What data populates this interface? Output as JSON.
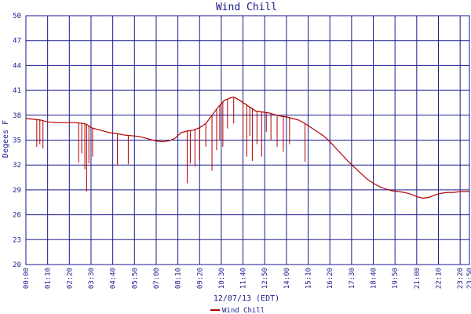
{
  "chart_data": {
    "type": "line",
    "title": "Wind Chill",
    "xlabel": "12/07/13 (EDT)",
    "ylabel": "Degees F",
    "ylim": [
      20,
      50
    ],
    "yticks": [
      "20",
      "23",
      "26",
      "29",
      "32",
      "35",
      "38",
      "41",
      "44",
      "47",
      "50"
    ],
    "xticks": [
      "00:00",
      "01:10",
      "02:20",
      "03:30",
      "04:40",
      "05:50",
      "07:00",
      "08:10",
      "09:20",
      "10:30",
      "11:40",
      "12:50",
      "14:00",
      "15:10",
      "16:20",
      "17:30",
      "18:40",
      "19:50",
      "21:00",
      "22:10",
      "23:20",
      "23:50"
    ],
    "grid": true,
    "legend_position": "bottom-left",
    "series": [
      {
        "name": "Wind Chill",
        "color": "#b00000",
        "x_minutes": [
          0,
          30,
          50,
          60,
          70,
          100,
          130,
          160,
          190,
          200,
          210,
          230,
          250,
          270,
          290,
          320,
          350,
          370,
          390,
          410,
          420,
          440,
          460,
          480,
          500,
          520,
          540,
          560,
          580,
          600,
          620,
          640,
          660,
          670,
          680,
          690,
          700,
          710,
          720,
          730,
          740,
          760,
          780,
          800,
          820,
          840,
          860,
          880,
          900,
          920,
          940,
          960,
          980,
          1000,
          1020,
          1040,
          1060,
          1080,
          1100,
          1120,
          1140,
          1160,
          1180,
          1200,
          1220,
          1240,
          1260,
          1280,
          1300,
          1320,
          1340,
          1360,
          1380,
          1400,
          1420,
          1430
        ],
        "values": [
          37.6,
          37.5,
          37.4,
          37.3,
          37.2,
          37.1,
          37.1,
          37.1,
          37.0,
          36.8,
          36.5,
          36.3,
          36.1,
          35.9,
          35.8,
          35.6,
          35.5,
          35.4,
          35.2,
          35.0,
          34.9,
          34.8,
          34.9,
          35.2,
          35.9,
          36.1,
          36.2,
          36.5,
          37.0,
          38.0,
          39.0,
          39.8,
          40.1,
          40.2,
          40.0,
          39.8,
          39.5,
          39.3,
          39.0,
          38.8,
          38.5,
          38.4,
          38.3,
          38.1,
          37.9,
          37.8,
          37.6,
          37.4,
          37.0,
          36.5,
          36.0,
          35.5,
          34.8,
          34.0,
          33.2,
          32.4,
          31.7,
          31.0,
          30.3,
          29.8,
          29.4,
          29.1,
          28.9,
          28.8,
          28.7,
          28.5,
          28.2,
          28.0,
          28.1,
          28.4,
          28.6,
          28.7,
          28.7,
          28.8,
          28.8,
          28.8
        ],
        "dips": [
          [
            35,
            34.2
          ],
          [
            45,
            34.5
          ],
          [
            55,
            34.0
          ],
          [
            170,
            32.3
          ],
          [
            180,
            33.4
          ],
          [
            190,
            31.5
          ],
          [
            196,
            28.8
          ],
          [
            203,
            32.2
          ],
          [
            215,
            33.0
          ],
          [
            295,
            32.0
          ],
          [
            330,
            32.1
          ],
          [
            520,
            29.8
          ],
          [
            530,
            32.2
          ],
          [
            545,
            31.8
          ],
          [
            560,
            32.6
          ],
          [
            580,
            34.2
          ],
          [
            600,
            31.3
          ],
          [
            615,
            33.8
          ],
          [
            625,
            35.0
          ],
          [
            635,
            34.2
          ],
          [
            650,
            36.4
          ],
          [
            670,
            37.0
          ],
          [
            700,
            35.2
          ],
          [
            712,
            33.0
          ],
          [
            722,
            35.5
          ],
          [
            730,
            32.5
          ],
          [
            745,
            34.5
          ],
          [
            760,
            33.0
          ],
          [
            775,
            36.0
          ],
          [
            790,
            35.0
          ],
          [
            810,
            34.2
          ],
          [
            830,
            33.6
          ],
          [
            850,
            34.5
          ],
          [
            900,
            32.4
          ]
        ]
      }
    ]
  }
}
